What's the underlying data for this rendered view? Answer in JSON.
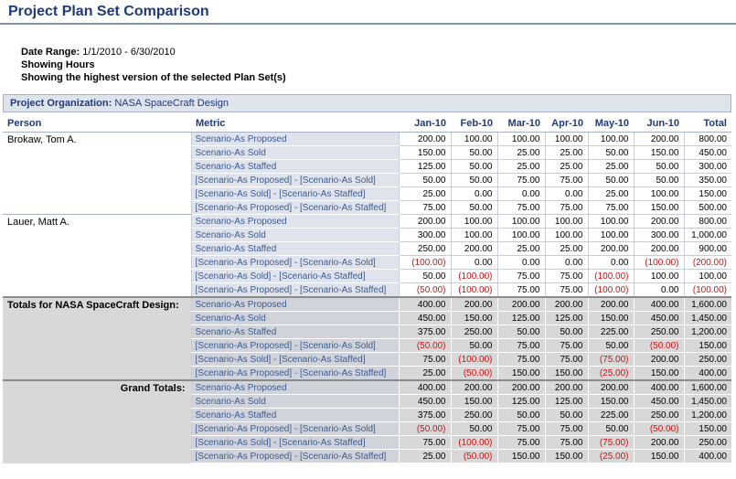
{
  "page": {
    "title": "Project Plan Set Comparison",
    "date_range_label": "Date Range:",
    "date_range_value": "1/1/2010 - 6/30/2010",
    "showing_line": "Showing Hours",
    "version_line": "Showing the highest version of the selected Plan Set(s)"
  },
  "org": {
    "label": "Project Organization:",
    "value": "NASA SpaceCraft Design"
  },
  "columns": [
    "Person",
    "Metric",
    "Jan-10",
    "Feb-10",
    "Mar-10",
    "Apr-10",
    "May-10",
    "Jun-10",
    "Total"
  ],
  "metrics": [
    "Scenario-As Proposed",
    "Scenario-As Sold",
    "Scenario-As Staffed",
    "[Scenario-As Proposed] - [Scenario-As Sold]",
    "[Scenario-As Sold] - [Scenario-As Staffed]",
    "[Scenario-As Proposed] - [Scenario-As Staffed]"
  ],
  "groups": [
    {
      "person": "Brokaw, Tom A.",
      "rows": [
        [
          "200.00",
          "100.00",
          "100.00",
          "100.00",
          "100.00",
          "200.00",
          "800.00"
        ],
        [
          "150.00",
          "50.00",
          "25.00",
          "25.00",
          "50.00",
          "150.00",
          "450.00"
        ],
        [
          "125.00",
          "50.00",
          "25.00",
          "25.00",
          "25.00",
          "50.00",
          "300.00"
        ],
        [
          "50.00",
          "50.00",
          "75.00",
          "75.00",
          "50.00",
          "50.00",
          "350.00"
        ],
        [
          "25.00",
          "0.00",
          "0.00",
          "0.00",
          "25.00",
          "100.00",
          "150.00"
        ],
        [
          "75.00",
          "50.00",
          "75.00",
          "75.00",
          "75.00",
          "150.00",
          "500.00"
        ]
      ]
    },
    {
      "person": "Lauer, Matt A.",
      "rows": [
        [
          "200.00",
          "100.00",
          "100.00",
          "100.00",
          "100.00",
          "200.00",
          "800.00"
        ],
        [
          "300.00",
          "100.00",
          "100.00",
          "100.00",
          "100.00",
          "300.00",
          "1,000.00"
        ],
        [
          "250.00",
          "200.00",
          "25.00",
          "25.00",
          "200.00",
          "200.00",
          "900.00"
        ],
        [
          "(100.00)",
          "0.00",
          "0.00",
          "0.00",
          "0.00",
          "(100.00)",
          "(200.00)"
        ],
        [
          "50.00",
          "(100.00)",
          "75.00",
          "75.00",
          "(100.00)",
          "100.00",
          "100.00"
        ],
        [
          "(50.00)",
          "(100.00)",
          "75.00",
          "75.00",
          "(100.00)",
          "0.00",
          "(100.00)"
        ]
      ]
    }
  ],
  "totals": [
    {
      "label": "Totals for NASA SpaceCraft Design:",
      "rows": [
        [
          "400.00",
          "200.00",
          "200.00",
          "200.00",
          "200.00",
          "400.00",
          "1,600.00"
        ],
        [
          "450.00",
          "150.00",
          "125.00",
          "125.00",
          "150.00",
          "450.00",
          "1,450.00"
        ],
        [
          "375.00",
          "250.00",
          "50.00",
          "50.00",
          "225.00",
          "250.00",
          "1,200.00"
        ],
        [
          "(50.00)",
          "50.00",
          "75.00",
          "75.00",
          "50.00",
          "(50.00)",
          "150.00"
        ],
        [
          "75.00",
          "(100.00)",
          "75.00",
          "75.00",
          "(75.00)",
          "200.00",
          "250.00"
        ],
        [
          "25.00",
          "(50.00)",
          "150.00",
          "150.00",
          "(25.00)",
          "150.00",
          "400.00"
        ]
      ]
    },
    {
      "label": "Grand Totals:",
      "rows": [
        [
          "400.00",
          "200.00",
          "200.00",
          "200.00",
          "200.00",
          "400.00",
          "1,600.00"
        ],
        [
          "450.00",
          "150.00",
          "125.00",
          "125.00",
          "150.00",
          "450.00",
          "1,450.00"
        ],
        [
          "375.00",
          "250.00",
          "50.00",
          "50.00",
          "225.00",
          "250.00",
          "1,200.00"
        ],
        [
          "(50.00)",
          "50.00",
          "75.00",
          "75.00",
          "50.00",
          "(50.00)",
          "150.00"
        ],
        [
          "75.00",
          "(100.00)",
          "75.00",
          "75.00",
          "(75.00)",
          "200.00",
          "250.00"
        ],
        [
          "25.00",
          "(50.00)",
          "150.00",
          "150.00",
          "(25.00)",
          "150.00",
          "400.00"
        ]
      ]
    }
  ],
  "colors": {
    "title": "#1f3a7a",
    "negative": "#d01010",
    "metric_bg": "#dfe3ec",
    "totals_bg": "#d8d8d8"
  }
}
